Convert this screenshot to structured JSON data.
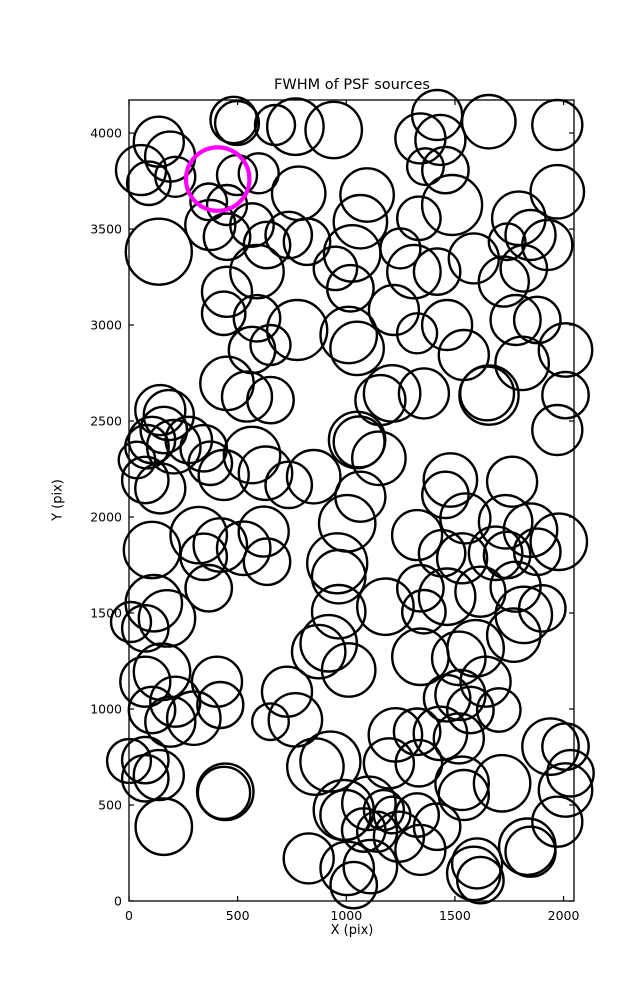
{
  "figure": {
    "background": "#ffffff",
    "frame_color": "#000000"
  },
  "chart_data": {
    "type": "scatter",
    "title": "FWHM of PSF sources",
    "xlabel": "X (pix)",
    "ylabel": "Y (pix)",
    "xlim": [
      0,
      2048
    ],
    "ylim": [
      0,
      4172
    ],
    "xticks": [
      0,
      500,
      1000,
      1500,
      2000
    ],
    "yticks": [
      0,
      500,
      1000,
      1500,
      2000,
      2500,
      3000,
      3500,
      4000
    ],
    "grid": false,
    "legend_position": "none",
    "marker": "open-circle",
    "circle_color": "#000000",
    "circle_linewidth": 2.4,
    "highlight_color": "#ff00ff",
    "highlight_linewidth": 4.2,
    "highlight_circle": {
      "x": 408,
      "y": 3760,
      "r": 146
    },
    "circles": [
      [
        497,
        4052,
        101
      ],
      [
        672,
        4042,
        92
      ],
      [
        137,
        3955,
        115
      ],
      [
        189,
        3877,
        115
      ],
      [
        55,
        3807,
        115
      ],
      [
        91,
        3738,
        100
      ],
      [
        213,
        3772,
        92
      ],
      [
        482,
        4068,
        107
      ],
      [
        497,
        3781,
        92
      ],
      [
        597,
        3790,
        92
      ],
      [
        367,
        3642,
        84
      ],
      [
        451,
        3625,
        92
      ],
      [
        374,
        3521,
        115
      ],
      [
        451,
        3460,
        107
      ],
      [
        137,
        3382,
        152
      ],
      [
        566,
        3521,
        100
      ],
      [
        635,
        3417,
        107
      ],
      [
        589,
        3278,
        123
      ],
      [
        451,
        3173,
        115
      ],
      [
        766,
        4033,
        130
      ],
      [
        942,
        4016,
        130
      ],
      [
        1341,
        3972,
        115
      ],
      [
        1364,
        3825,
        84
      ],
      [
        781,
        3686,
        123
      ],
      [
        1096,
        3677,
        123
      ],
      [
        1065,
        3538,
        123
      ],
      [
        1334,
        3556,
        100
      ],
      [
        735,
        3469,
        107
      ],
      [
        819,
        3434,
        107
      ],
      [
        1027,
        3373,
        130
      ],
      [
        950,
        3295,
        100
      ],
      [
        1249,
        3399,
        92
      ],
      [
        1311,
        3278,
        123
      ],
      [
        1019,
        3191,
        107
      ],
      [
        1418,
        4094,
        115
      ],
      [
        1656,
        4059,
        123
      ],
      [
        1971,
        4042,
        115
      ],
      [
        1433,
        3964,
        115
      ],
      [
        1456,
        3807,
        107
      ],
      [
        1487,
        3625,
        138
      ],
      [
        1971,
        3694,
        123
      ],
      [
        1794,
        3556,
        123
      ],
      [
        1848,
        3469,
        115
      ],
      [
        1740,
        3434,
        84
      ],
      [
        1925,
        3417,
        115
      ],
      [
        1587,
        3347,
        115
      ],
      [
        1817,
        3295,
        107
      ],
      [
        1418,
        3278,
        107
      ],
      [
        1725,
        3226,
        115
      ],
      [
        436,
        3061,
        100
      ],
      [
        589,
        3035,
        107
      ],
      [
        566,
        2870,
        107
      ],
      [
        651,
        2896,
        92
      ],
      [
        451,
        2696,
        123
      ],
      [
        543,
        2627,
        115
      ],
      [
        651,
        2609,
        107
      ],
      [
        144,
        2557,
        115
      ],
      [
        183,
        2531,
        115
      ],
      [
        160,
        2453,
        107
      ],
      [
        106,
        2401,
        107
      ],
      [
        83,
        2366,
        100
      ],
      [
        206,
        2366,
        123
      ],
      [
        275,
        2401,
        107
      ],
      [
        344,
        2358,
        107
      ],
      [
        374,
        2280,
        100
      ],
      [
        436,
        2219,
        115
      ],
      [
        37,
        2297,
        84
      ],
      [
        75,
        2193,
        107
      ],
      [
        144,
        2149,
        115
      ],
      [
        566,
        2323,
        130
      ],
      [
        628,
        2228,
        123
      ],
      [
        774,
        2974,
        138
      ],
      [
        1011,
        2948,
        130
      ],
      [
        1050,
        2878,
        123
      ],
      [
        1219,
        3078,
        115
      ],
      [
        1326,
        2957,
        92
      ],
      [
        1211,
        2644,
        130
      ],
      [
        1157,
        2609,
        115
      ],
      [
        1357,
        2644,
        115
      ],
      [
        1050,
        2401,
        130
      ],
      [
        1059,
        2391,
        117
      ],
      [
        1150,
        2306,
        123
      ],
      [
        850,
        2210,
        123
      ],
      [
        735,
        2167,
        107
      ],
      [
        1065,
        2106,
        115
      ],
      [
        1464,
        3000,
        115
      ],
      [
        1779,
        3026,
        115
      ],
      [
        1879,
        3026,
        107
      ],
      [
        2009,
        2870,
        123
      ],
      [
        1541,
        2844,
        115
      ],
      [
        1809,
        2800,
        123
      ],
      [
        1648,
        2644,
        124
      ],
      [
        1657,
        2635,
        136
      ],
      [
        2009,
        2635,
        107
      ],
      [
        1971,
        2453,
        115
      ],
      [
        1479,
        2193,
        123
      ],
      [
        1456,
        2115,
        107
      ],
      [
        1763,
        2184,
        115
      ],
      [
        106,
        1828,
        130
      ],
      [
        321,
        1906,
        130
      ],
      [
        344,
        1793,
        107
      ],
      [
        420,
        1854,
        123
      ],
      [
        528,
        1837,
        123
      ],
      [
        620,
        1924,
        115
      ],
      [
        635,
        1767,
        107
      ],
      [
        367,
        1629,
        107
      ],
      [
        114,
        1551,
        130
      ],
      [
        175,
        1472,
        130
      ],
      [
        75,
        1420,
        107
      ],
      [
        9,
        1453,
        92
      ],
      [
        152,
        1194,
        130
      ],
      [
        75,
        1142,
        115
      ],
      [
        405,
        1142,
        115
      ],
      [
        213,
        1038,
        115
      ],
      [
        1004,
        1967,
        130
      ],
      [
        958,
        1759,
        138
      ],
      [
        965,
        1689,
        123
      ],
      [
        965,
        1507,
        123
      ],
      [
        1180,
        1533,
        130
      ],
      [
        919,
        1342,
        130
      ],
      [
        873,
        1299,
        123
      ],
      [
        1011,
        1203,
        123
      ],
      [
        1326,
        1906,
        115
      ],
      [
        1341,
        1629,
        107
      ],
      [
        1357,
        1507,
        100
      ],
      [
        1341,
        1272,
        130
      ],
      [
        727,
        1090,
        115
      ],
      [
        1548,
        1993,
        115
      ],
      [
        1733,
        1975,
        123
      ],
      [
        1848,
        1932,
        123
      ],
      [
        1978,
        1871,
        130
      ],
      [
        1687,
        1811,
        123
      ],
      [
        1740,
        1802,
        107
      ],
      [
        1879,
        1819,
        107
      ],
      [
        1441,
        1811,
        107
      ],
      [
        1533,
        1785,
        115
      ],
      [
        1464,
        1585,
        130
      ],
      [
        1617,
        1611,
        115
      ],
      [
        1779,
        1637,
        115
      ],
      [
        1817,
        1490,
        130
      ],
      [
        1902,
        1524,
        107
      ],
      [
        1771,
        1385,
        123
      ],
      [
        1595,
        1316,
        130
      ],
      [
        1518,
        1264,
        123
      ],
      [
        1641,
        1142,
        115
      ],
      [
        1525,
        1073,
        115
      ],
      [
        1464,
        1056,
        107
      ],
      [
        106,
        995,
        107
      ],
      [
        190,
        934,
        115
      ],
      [
        298,
        952,
        123
      ],
      [
        420,
        1021,
        106
      ],
      [
        75,
        734,
        107
      ],
      [
        137,
        656,
        115
      ],
      [
        75,
        639,
        107
      ],
      [
        443,
        569,
        130
      ],
      [
        437,
        563,
        120
      ],
      [
        160,
        387,
        130
      ],
      [
        651,
        934,
        84
      ],
      [
        0,
        729,
        101
      ],
      [
        766,
        943,
        123
      ],
      [
        927,
        726,
        138
      ],
      [
        858,
        700,
        130
      ],
      [
        1226,
        865,
        123
      ],
      [
        1326,
        882,
        107
      ],
      [
        1196,
        717,
        115
      ],
      [
        1334,
        717,
        107
      ],
      [
        988,
        474,
        138
      ],
      [
        996,
        448,
        115
      ],
      [
        1104,
        509,
        123
      ],
      [
        1173,
        474,
        92
      ],
      [
        1211,
        448,
        84
      ],
      [
        1080,
        370,
        100
      ],
      [
        1142,
        361,
        92
      ],
      [
        1242,
        335,
        115
      ],
      [
        1326,
        448,
        100
      ],
      [
        827,
        222,
        115
      ],
      [
        1004,
        170,
        123
      ],
      [
        1111,
        179,
        123
      ],
      [
        1034,
        83,
        107
      ],
      [
        1341,
        266,
        115
      ],
      [
        1433,
        873,
        123
      ],
      [
        1518,
        847,
        115
      ],
      [
        1571,
        995,
        107
      ],
      [
        1702,
        995,
        100
      ],
      [
        1940,
        804,
        130
      ],
      [
        2009,
        804,
        107
      ],
      [
        1717,
        613,
        130
      ],
      [
        1533,
        613,
        123
      ],
      [
        1541,
        552,
        115
      ],
      [
        2009,
        578,
        123
      ],
      [
        2032,
        665,
        107
      ],
      [
        1418,
        387,
        107
      ],
      [
        1833,
        283,
        130
      ],
      [
        1848,
        257,
        115
      ],
      [
        1602,
        196,
        115
      ],
      [
        1587,
        144,
        123
      ],
      [
        1617,
        109,
        107
      ],
      [
        1971,
        413,
        115
      ]
    ]
  }
}
